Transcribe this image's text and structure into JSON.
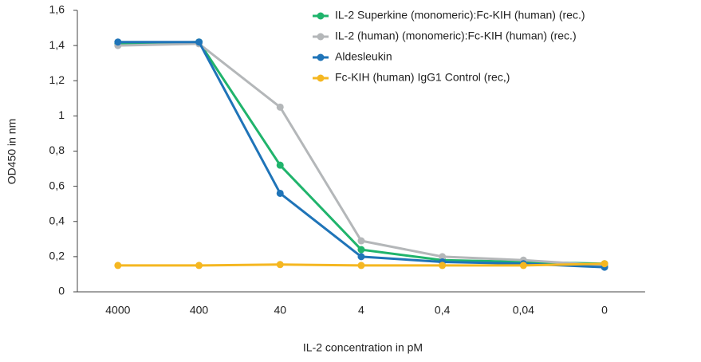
{
  "chart_data": {
    "type": "line",
    "categories": [
      "4000",
      "400",
      "40",
      "4",
      "0,4",
      "0,04",
      "0"
    ],
    "series": [
      {
        "name": "IL-2 Superkine (monomeric):Fc-KIH (human) (rec.)",
        "color": "#20b46c",
        "values": [
          1.41,
          1.42,
          0.72,
          0.24,
          0.18,
          0.17,
          0.16
        ]
      },
      {
        "name": "IL-2 (human) (monomeric):Fc-KIH (human) (rec.)",
        "color": "#b4b7b9",
        "values": [
          1.4,
          1.41,
          1.05,
          0.29,
          0.2,
          0.18,
          0.15
        ]
      },
      {
        "name": "Aldesleukin",
        "color": "#1f74b8",
        "values": [
          1.42,
          1.42,
          0.56,
          0.2,
          0.17,
          0.16,
          0.14
        ]
      },
      {
        "name": "Fc-KIH (human) IgG1 Control (rec,)",
        "color": "#f5b721",
        "values": [
          0.15,
          0.15,
          0.155,
          0.15,
          0.15,
          0.15,
          0.16
        ]
      }
    ],
    "ylim": [
      0,
      1.6
    ],
    "yticks": [
      0,
      {
        "value": 0.2,
        "label": "0,2"
      },
      {
        "value": 0.4,
        "label": "0,4"
      },
      {
        "value": 0.6,
        "label": "0,6"
      },
      {
        "value": 0.8,
        "label": "0,8"
      },
      1,
      {
        "value": 1.2,
        "label": "1,2"
      },
      {
        "value": 1.4,
        "label": "1,4"
      },
      {
        "value": 1.6,
        "label": "1,6"
      }
    ],
    "y_label": "OD450 in nm",
    "x_label": "IL-2 concentration in pM",
    "legend": "top-right"
  }
}
